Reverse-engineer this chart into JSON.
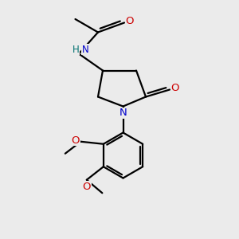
{
  "bg_color": "#ebebeb",
  "bond_color": "#000000",
  "N_color": "#0000cc",
  "O_color": "#cc0000",
  "H_color": "#007070",
  "line_width": 1.6,
  "xlim": [
    0,
    10
  ],
  "ylim": [
    0,
    10
  ]
}
